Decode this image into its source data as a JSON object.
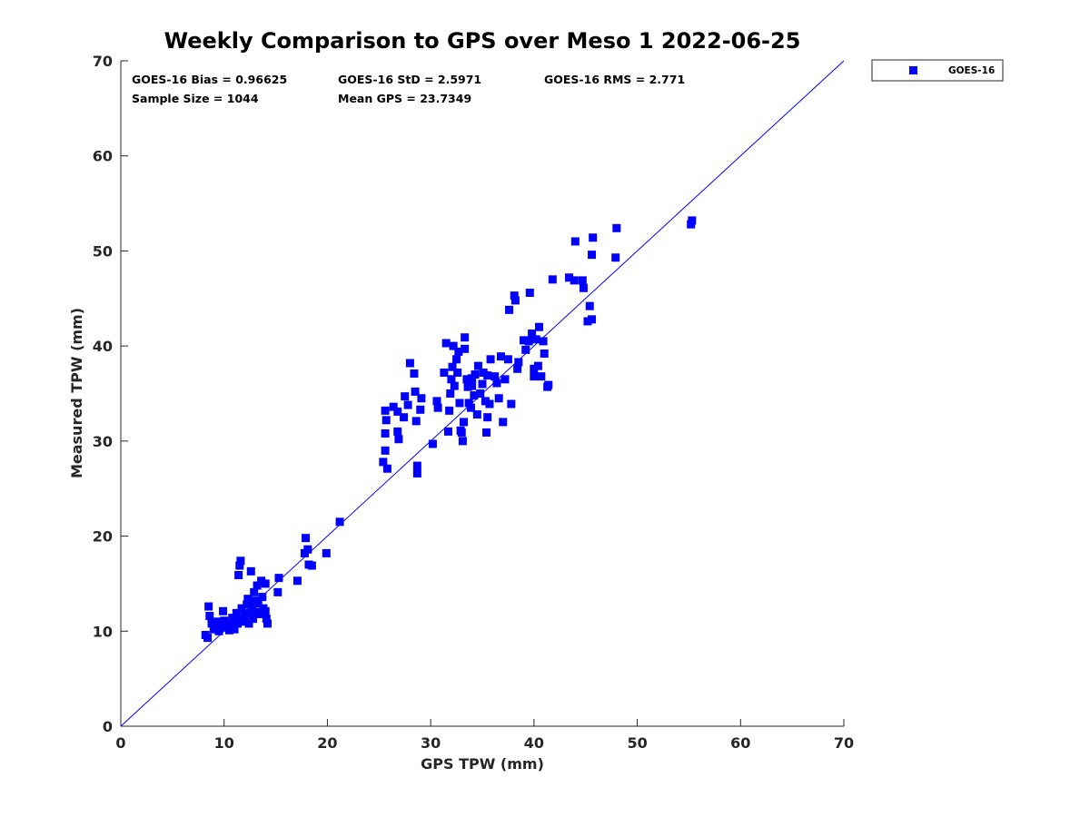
{
  "colors": {
    "series": "#0000ff",
    "axis": "#262626",
    "line": "#0000ff"
  },
  "chart_data": {
    "type": "scatter",
    "title": "Weekly Comparison to GPS over Meso 1 2022-06-25",
    "xlabel": "GPS TPW (mm)",
    "ylabel": "Measured TPW (mm)",
    "xlim": [
      0,
      70
    ],
    "ylim": [
      0,
      70
    ],
    "xticks": [
      "0",
      "10",
      "20",
      "30",
      "40",
      "50",
      "60",
      "70"
    ],
    "yticks": [
      "0",
      "10",
      "20",
      "30",
      "40",
      "50",
      "60",
      "70"
    ],
    "grid": false,
    "legend_position": "outside top-right",
    "stats": [
      "GOES-16 Bias = 0.96625",
      "GOES-16 StD = 2.5971",
      "GOES-16 RMS = 2.771",
      "Sample Size = 1044",
      "Mean GPS = 23.7349"
    ],
    "reference_line": {
      "type": "one-to-one",
      "x": [
        0,
        70
      ],
      "y": [
        0,
        70
      ]
    },
    "series": [
      {
        "name": "GOES-16",
        "marker": "square",
        "points": [
          [
            8.2,
            9.6
          ],
          [
            8.4,
            9.3
          ],
          [
            8.5,
            12.6
          ],
          [
            8.6,
            11.6
          ],
          [
            8.8,
            10.8
          ],
          [
            9.0,
            10.2
          ],
          [
            9.2,
            10.6
          ],
          [
            9.4,
            11.0
          ],
          [
            9.5,
            10.0
          ],
          [
            9.7,
            10.4
          ],
          [
            9.9,
            12.1
          ],
          [
            10.0,
            11.1
          ],
          [
            10.1,
            10.4
          ],
          [
            10.3,
            10.9
          ],
          [
            10.5,
            10.1
          ],
          [
            10.7,
            10.6
          ],
          [
            10.8,
            11.4
          ],
          [
            11.0,
            10.2
          ],
          [
            11.2,
            11.9
          ],
          [
            11.3,
            10.8
          ],
          [
            11.5,
            11.3
          ],
          [
            11.7,
            12.4
          ],
          [
            11.8,
            11.0
          ],
          [
            12.0,
            11.6
          ],
          [
            12.2,
            12.8
          ],
          [
            12.4,
            10.8
          ],
          [
            12.5,
            11.9
          ],
          [
            12.7,
            12.6
          ],
          [
            12.8,
            11.3
          ],
          [
            13.0,
            13.2
          ],
          [
            13.2,
            12.0
          ],
          [
            13.3,
            12.9
          ],
          [
            13.5,
            11.8
          ],
          [
            13.7,
            13.6
          ],
          [
            13.8,
            12.4
          ],
          [
            14.0,
            12.1
          ],
          [
            14.1,
            11.3
          ],
          [
            14.2,
            10.8
          ],
          [
            11.4,
            15.9
          ],
          [
            11.5,
            16.9
          ],
          [
            11.6,
            17.4
          ],
          [
            12.6,
            16.3
          ],
          [
            13.2,
            14.8
          ],
          [
            13.6,
            15.3
          ],
          [
            14.0,
            15.0
          ],
          [
            15.3,
            15.6
          ],
          [
            15.2,
            14.1
          ],
          [
            12.3,
            13.4
          ],
          [
            12.9,
            14.1
          ],
          [
            10.5,
            10.3
          ],
          [
            17.1,
            15.3
          ],
          [
            17.8,
            18.2
          ],
          [
            17.9,
            19.8
          ],
          [
            18.1,
            18.6
          ],
          [
            18.2,
            17.0
          ],
          [
            18.5,
            16.9
          ],
          [
            19.9,
            18.2
          ],
          [
            21.2,
            21.5
          ],
          [
            25.4,
            27.8
          ],
          [
            25.6,
            29.0
          ],
          [
            25.6,
            30.8
          ],
          [
            25.7,
            32.2
          ],
          [
            25.6,
            33.2
          ],
          [
            25.8,
            27.1
          ],
          [
            26.4,
            33.6
          ],
          [
            26.8,
            31.0
          ],
          [
            26.9,
            30.2
          ],
          [
            26.8,
            33.1
          ],
          [
            27.4,
            32.5
          ],
          [
            27.5,
            34.7
          ],
          [
            27.8,
            33.8
          ],
          [
            28.0,
            38.2
          ],
          [
            28.4,
            37.1
          ],
          [
            28.5,
            35.2
          ],
          [
            28.6,
            32.1
          ],
          [
            28.7,
            27.4
          ],
          [
            28.7,
            26.6
          ],
          [
            29.0,
            33.3
          ],
          [
            29.1,
            34.5
          ],
          [
            30.2,
            29.7
          ],
          [
            30.6,
            34.2
          ],
          [
            30.7,
            33.5
          ],
          [
            31.3,
            37.2
          ],
          [
            31.5,
            40.3
          ],
          [
            31.7,
            31.0
          ],
          [
            31.8,
            33.2
          ],
          [
            31.9,
            35.0
          ],
          [
            32.0,
            36.5
          ],
          [
            32.1,
            37.8
          ],
          [
            32.2,
            40.0
          ],
          [
            32.3,
            35.8
          ],
          [
            32.5,
            38.6
          ],
          [
            32.6,
            37.2
          ],
          [
            32.7,
            39.4
          ],
          [
            32.8,
            34.0
          ],
          [
            32.9,
            31.1
          ],
          [
            33.0,
            30.9
          ],
          [
            33.1,
            30.0
          ],
          [
            33.2,
            32.0
          ],
          [
            33.3,
            40.9
          ],
          [
            33.3,
            39.7
          ],
          [
            33.5,
            36.5
          ],
          [
            33.6,
            35.7
          ],
          [
            33.7,
            34.0
          ],
          [
            33.9,
            33.5
          ],
          [
            34.0,
            35.8
          ],
          [
            34.0,
            36.6
          ],
          [
            34.2,
            34.8
          ],
          [
            34.3,
            37.0
          ],
          [
            34.5,
            32.8
          ],
          [
            34.6,
            37.9
          ],
          [
            34.8,
            35.0
          ],
          [
            35.0,
            36.0
          ],
          [
            35.1,
            37.2
          ],
          [
            35.3,
            34.2
          ],
          [
            35.4,
            30.9
          ],
          [
            35.5,
            32.5
          ],
          [
            35.5,
            36.9
          ],
          [
            35.7,
            33.9
          ],
          [
            35.8,
            38.6
          ],
          [
            36.2,
            36.8
          ],
          [
            36.4,
            36.1
          ],
          [
            36.6,
            34.5
          ],
          [
            36.8,
            38.9
          ],
          [
            37.0,
            32.0
          ],
          [
            37.2,
            36.5
          ],
          [
            37.5,
            38.6
          ],
          [
            37.6,
            43.8
          ],
          [
            37.8,
            33.9
          ],
          [
            38.1,
            45.3
          ],
          [
            38.2,
            44.8
          ],
          [
            38.4,
            37.6
          ],
          [
            38.5,
            38.3
          ],
          [
            39.0,
            40.6
          ],
          [
            39.2,
            39.6
          ],
          [
            39.6,
            45.6
          ],
          [
            39.5,
            40.5
          ],
          [
            39.8,
            41.3
          ],
          [
            40.0,
            37.6
          ],
          [
            40.0,
            36.8
          ],
          [
            40.2,
            40.7
          ],
          [
            40.4,
            37.9
          ],
          [
            40.5,
            42.0
          ],
          [
            40.7,
            36.8
          ],
          [
            40.9,
            40.5
          ],
          [
            41.0,
            39.2
          ],
          [
            41.3,
            35.7
          ],
          [
            41.4,
            35.9
          ],
          [
            41.8,
            47.0
          ],
          [
            43.4,
            47.2
          ],
          [
            43.9,
            46.9
          ],
          [
            44.0,
            51.0
          ],
          [
            44.7,
            46.9
          ],
          [
            44.8,
            46.1
          ],
          [
            45.2,
            42.6
          ],
          [
            45.4,
            44.2
          ],
          [
            45.6,
            42.8
          ],
          [
            45.6,
            49.6
          ],
          [
            45.7,
            51.4
          ],
          [
            47.9,
            49.3
          ],
          [
            48.0,
            52.4
          ],
          [
            55.2,
            52.8
          ],
          [
            55.3,
            53.2
          ]
        ]
      }
    ]
  }
}
